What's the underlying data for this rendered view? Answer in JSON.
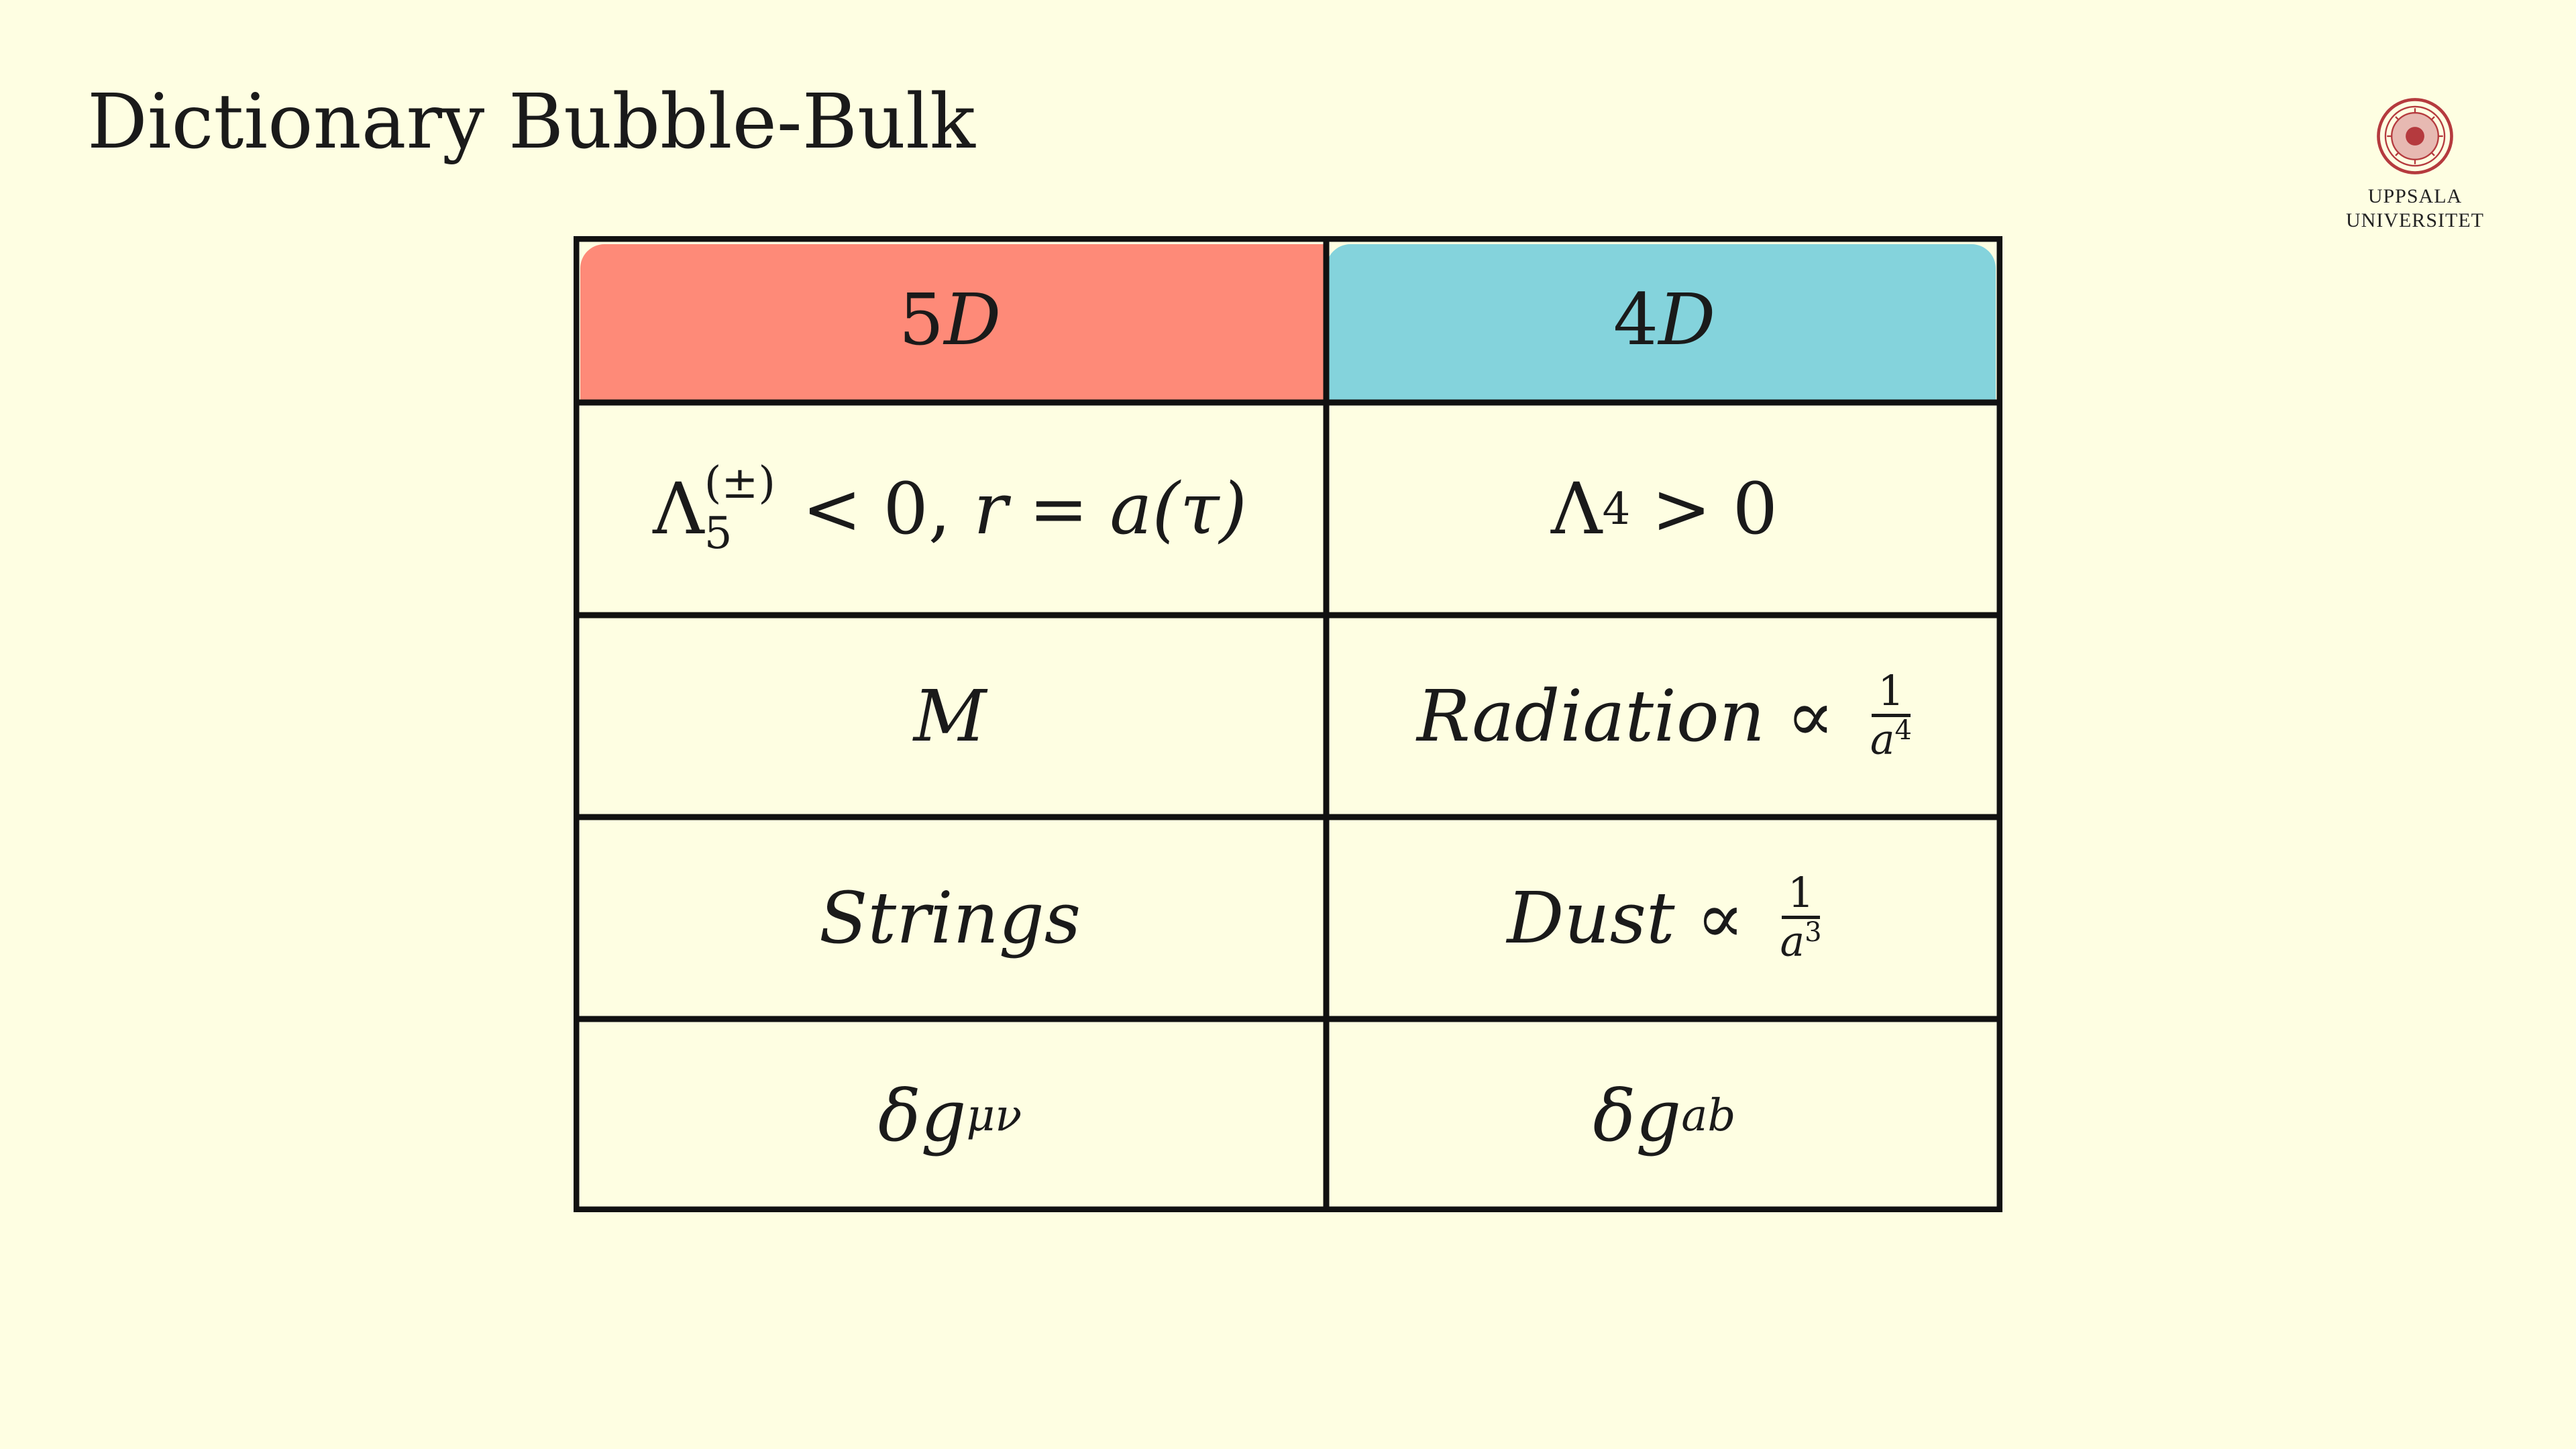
{
  "slide": {
    "title": "Dictionary Bubble-Bulk"
  },
  "logo": {
    "line1": "UPPSALA",
    "line2": "UNIVERSITET"
  },
  "colors": {
    "background": "#fefee2",
    "header_5d": "#fe8a78",
    "header_4d": "#84d3dc",
    "seal": "#b53a3e"
  },
  "table": {
    "header_5d": {
      "num": "5",
      "var": "D"
    },
    "header_4d": {
      "num": "4",
      "var": "D"
    },
    "row1": {
      "left": {
        "symbol": "Λ",
        "sup": "(±)",
        "sub": "5",
        "rest_rel": "<",
        "zero": "0,",
        "r": "r",
        "eq": "=",
        "a": "a",
        "arg": "(τ)"
      },
      "right": {
        "symbol": "Λ",
        "sub": "4",
        "rel": ">",
        "zero": "0"
      }
    },
    "row2": {
      "left": "M",
      "right": {
        "word": "Radiation",
        "prop": "∝",
        "num": "1",
        "den": "a",
        "den_exp": "4"
      }
    },
    "row3": {
      "left": "Strings",
      "right": {
        "word": "Dust",
        "prop": "∝",
        "num": "1",
        "den": "a",
        "den_exp": "3"
      }
    },
    "row4": {
      "left": {
        "delta": "δ",
        "g": "g",
        "sub": "μν"
      },
      "right": {
        "delta": "δ",
        "g": "g",
        "sub": "ab"
      }
    }
  }
}
